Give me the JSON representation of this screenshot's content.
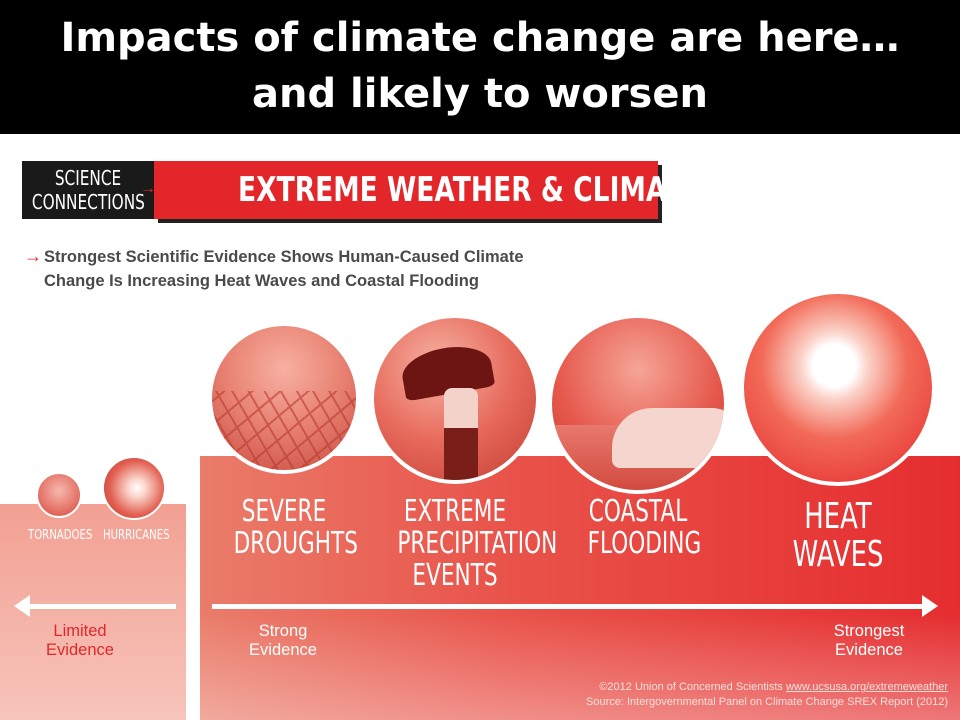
{
  "slide": {
    "title_line1": "Impacts of climate change are here…",
    "title_line2": "and likely to worsen"
  },
  "infographic": {
    "badge_line1": "SCIENCE",
    "badge_line2": "CONNECTIONS",
    "badge_title": "EXTREME WEATHER & CLIMATE CHANGE",
    "subhead_line1": "Strongest Scientific Evidence Shows Human-Caused Climate",
    "subhead_line2": "Change Is Increasing Heat Waves and Coastal Flooding",
    "categories": [
      {
        "lines": [
          "TORNADOES"
        ]
      },
      {
        "lines": [
          "HURRICANES"
        ]
      },
      {
        "lines": [
          "SEVERE",
          "DROUGHTS"
        ]
      },
      {
        "lines": [
          "EXTREME",
          "PRECIPITATION",
          "EVENTS"
        ]
      },
      {
        "lines": [
          "COASTAL",
          "FLOODING"
        ]
      },
      {
        "lines": [
          "HEAT",
          "WAVES"
        ]
      }
    ],
    "evidence": {
      "limited": [
        "Limited",
        "Evidence"
      ],
      "strong": [
        "Strong",
        "Evidence"
      ],
      "strongest": [
        "Strongest",
        "Evidence"
      ]
    },
    "credit_prefix": "©2012 Union of Concerned Scientists",
    "credit_link": "www.ucsusa.org/extremeweather",
    "source": "Source: Intergovernmental Panel on Climate Change SREX Report (2012)",
    "colors": {
      "accent_red": "#e3262a",
      "title_bar": "#000000"
    },
    "icons": {
      "arrow_right": "→"
    }
  }
}
